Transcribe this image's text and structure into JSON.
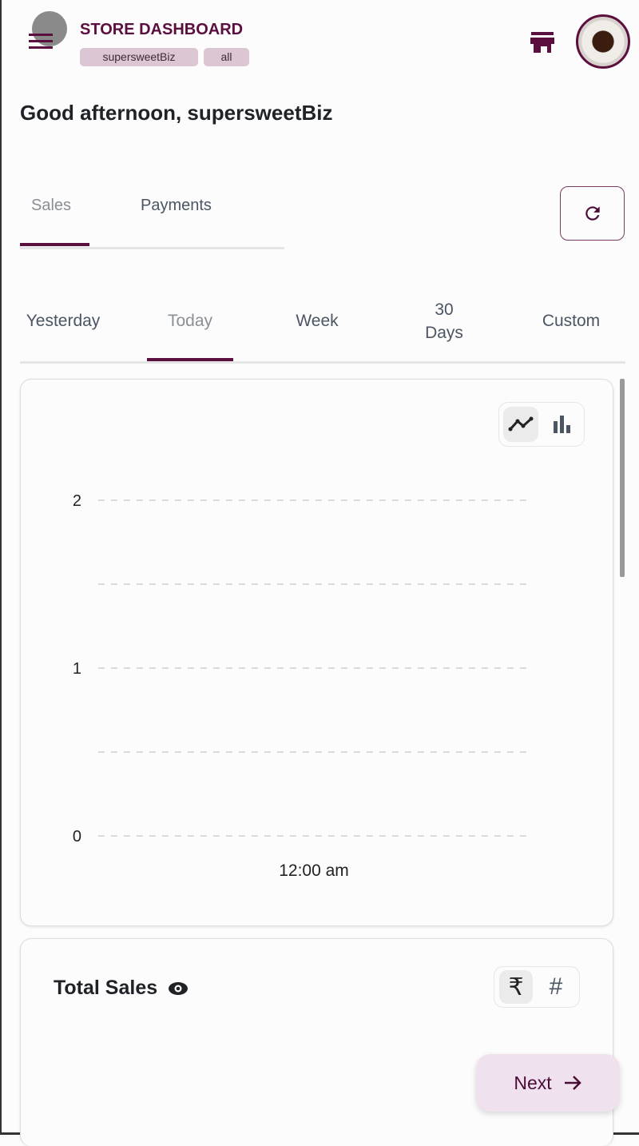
{
  "header": {
    "title": "STORE DASHBOARD",
    "chips": [
      "supersweetBiz",
      "all"
    ],
    "icons": [
      "menu-icon",
      "store-icon",
      "avatar"
    ]
  },
  "greeting": "Good afternoon, supersweetBiz",
  "main_tabs": [
    {
      "label": "Sales",
      "active": true
    },
    {
      "label": "Payments",
      "active": false
    }
  ],
  "period_tabs": [
    {
      "label": "Yesterday"
    },
    {
      "label": "Today",
      "active": true
    },
    {
      "label": "Week"
    },
    {
      "label": "30 Days"
    },
    {
      "label": "Custom"
    }
  ],
  "colors": {
    "accent": "#5a0f3f",
    "chip": "#dcc6d3",
    "next_bg": "#f0e1ee"
  },
  "chart_data": {
    "type": "line",
    "x_ticks": [
      "12:00 am"
    ],
    "y_ticks": [
      "0",
      "1",
      "2"
    ],
    "ylim": [
      0,
      2
    ],
    "grid": true,
    "series": [],
    "view_options": [
      "line",
      "bar"
    ],
    "selected_view": "line"
  },
  "total_sales": {
    "label": "Total Sales",
    "units": [
      "₹",
      "#"
    ],
    "selected_unit": "₹"
  },
  "next_label": "Next"
}
